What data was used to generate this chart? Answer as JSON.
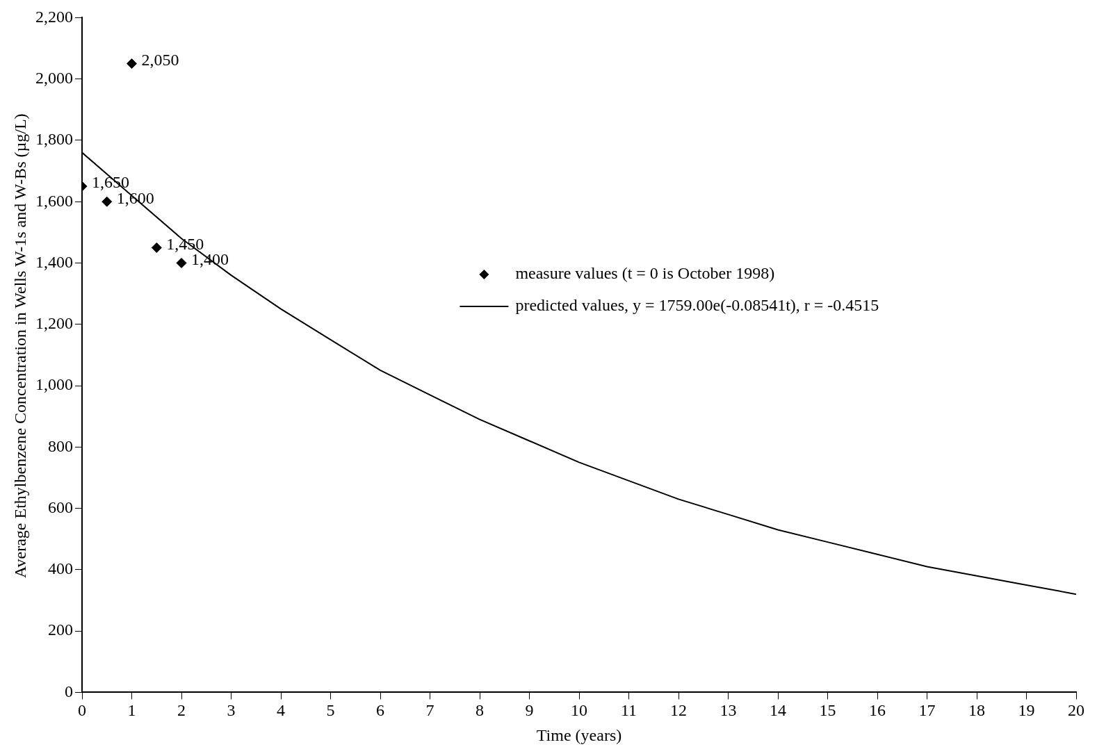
{
  "chart_data": {
    "type": "scatter",
    "xlabel": "Time (years)",
    "ylabel": "Average Ethylbenzene Concentration in Wells W-1s and W-Bs (µg/L)",
    "xlim": [
      0,
      20
    ],
    "xticks": [
      0,
      1,
      2,
      3,
      4,
      5,
      6,
      7,
      8,
      9,
      10,
      11,
      12,
      13,
      14,
      15,
      16,
      17,
      18,
      19,
      20
    ],
    "ylim": [
      0,
      2200
    ],
    "yticks": [
      0,
      200,
      400,
      600,
      800,
      {
        "value": 1000,
        "label": "1,000"
      },
      {
        "value": 1200,
        "label": "1,200"
      },
      {
        "value": 1400,
        "label": "1,400"
      },
      {
        "value": 1600,
        "label": "1,600"
      },
      {
        "value": 1800,
        "label": "1,800"
      },
      {
        "value": 2000,
        "label": "2,000"
      },
      {
        "value": 2200,
        "label": "2,200"
      }
    ],
    "grid": false,
    "legend": "right",
    "series": [
      {
        "name": "measure values (t = 0 is October 1998)",
        "type": "scatter",
        "color": "#000000",
        "marker": "diamond",
        "x": [
          0,
          0.5,
          1,
          1.5,
          2
        ],
        "values": [
          1650,
          1600,
          2050,
          1450,
          1400
        ],
        "value_labels": [
          "1,650",
          "1,600",
          "2,050",
          "1,450",
          "1,400"
        ]
      },
      {
        "name": "predicted values, y = 1759.00e(-0.08541t), r = -0.4515",
        "type": "line",
        "color": "#000000",
        "marker": "none",
        "line_style": "solid",
        "x": [
          0,
          1,
          2,
          3,
          4,
          5,
          6,
          7,
          8,
          9,
          10,
          11,
          12,
          13,
          14,
          15,
          16,
          17,
          18,
          19,
          20
        ],
        "values": [
          1760,
          1620,
          1480,
          1360,
          1250,
          1150,
          1050,
          970,
          890,
          820,
          750,
          690,
          630,
          580,
          530,
          490,
          450,
          410,
          380,
          350,
          320
        ]
      }
    ]
  }
}
